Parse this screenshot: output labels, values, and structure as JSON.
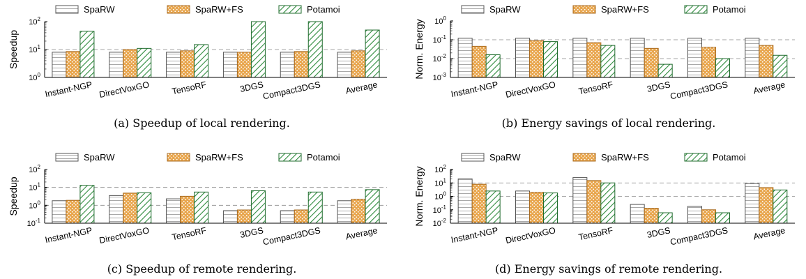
{
  "colors": {
    "sparw_fill": "#ffffff",
    "sparw_line": "#a9a9a9",
    "sparwfs_fill": "#e8a54c",
    "sparwfs_dot": "#ffffff",
    "potamoi_fill": "#ffffff",
    "potamoi_line": "#2e8b3d",
    "gridline": "#888888"
  },
  "chart_data": [
    {
      "type": "bar",
      "ylabel": "Speedup",
      "caption": "(a) Speedup of local rendering.",
      "yscale": "log",
      "ylim_exp": [
        0,
        2
      ],
      "ytick_exps": [
        0,
        1,
        2
      ],
      "grid_exps": [
        1
      ],
      "categories": [
        "Instant-NGP",
        "DirectVoxGO",
        "TensoRF",
        "3DGS",
        "Compact3DGS",
        "Average"
      ],
      "legend": [
        "SpaRW",
        "SpaRW+FS",
        "Potamoi"
      ],
      "series": [
        {
          "name": "SpaRW",
          "values": [
            8,
            8,
            8,
            8,
            8,
            8
          ]
        },
        {
          "name": "SpaRW+FS",
          "values": [
            8.5,
            10,
            9,
            8,
            8.5,
            9
          ]
        },
        {
          "name": "Potamoi",
          "values": [
            45,
            11,
            15,
            100,
            100,
            50
          ]
        }
      ]
    },
    {
      "type": "bar",
      "ylabel": "Norm. Energy",
      "caption": "(b) Energy savings of local rendering.",
      "yscale": "log",
      "ylim_exp": [
        -3,
        0
      ],
      "ytick_exps": [
        -3,
        -2,
        -1,
        0
      ],
      "grid_exps": [
        -1,
        -2
      ],
      "categories": [
        "Instant-NGP",
        "DirectVoxGO",
        "TensoRF",
        "3DGS",
        "Compact3DGS",
        "Average"
      ],
      "legend": [
        "SpaRW",
        "SpaRW+FS",
        "Potamoi"
      ],
      "series": [
        {
          "name": "SpaRW",
          "values": [
            0.12,
            0.12,
            0.12,
            0.12,
            0.12,
            0.12
          ]
        },
        {
          "name": "SpaRW+FS",
          "values": [
            0.045,
            0.09,
            0.07,
            0.035,
            0.04,
            0.05
          ]
        },
        {
          "name": "Potamoi",
          "values": [
            0.016,
            0.08,
            0.05,
            0.005,
            0.01,
            0.015
          ]
        }
      ]
    },
    {
      "type": "bar",
      "ylabel": "Speedup",
      "caption": "(c) Speedup of remote rendering.",
      "yscale": "log",
      "ylim_exp": [
        -1,
        2
      ],
      "ytick_exps": [
        -1,
        0,
        1,
        2
      ],
      "grid_exps": [
        1,
        0
      ],
      "categories": [
        "Instant-NGP",
        "DirectVoxGO",
        "TensoRF",
        "3DGS",
        "Compact3DGS",
        "Average"
      ],
      "legend": [
        "SpaRW",
        "SpaRW+FS",
        "Potamoi"
      ],
      "series": [
        {
          "name": "SpaRW",
          "values": [
            1.8,
            3.5,
            2.3,
            0.5,
            0.5,
            1.8
          ]
        },
        {
          "name": "SpaRW+FS",
          "values": [
            1.9,
            4.8,
            3.2,
            0.55,
            0.55,
            2.2
          ]
        },
        {
          "name": "Potamoi",
          "values": [
            13,
            5,
            5.5,
            6.5,
            5.5,
            7.5
          ]
        }
      ]
    },
    {
      "type": "bar",
      "ylabel": "Norm. Energy",
      "caption": "(d) Energy savings of remote rendering.",
      "yscale": "log",
      "ylim_exp": [
        -2,
        2
      ],
      "ytick_exps": [
        -2,
        -1,
        0,
        1,
        2
      ],
      "grid_exps": [
        1,
        0
      ],
      "categories": [
        "Instant-NGP",
        "DirectVoxGO",
        "TensoRF",
        "3DGS",
        "Compact3DGS",
        "Average"
      ],
      "legend": [
        "SpaRW",
        "SpaRW+FS",
        "Potamoi"
      ],
      "series": [
        {
          "name": "SpaRW",
          "values": [
            20,
            2.5,
            25,
            0.25,
            0.18,
            9
          ]
        },
        {
          "name": "SpaRW+FS",
          "values": [
            8,
            2,
            15,
            0.13,
            0.1,
            4.5
          ]
        },
        {
          "name": "Potamoi",
          "values": [
            2.5,
            1.8,
            10,
            0.06,
            0.06,
            3
          ]
        }
      ]
    }
  ]
}
